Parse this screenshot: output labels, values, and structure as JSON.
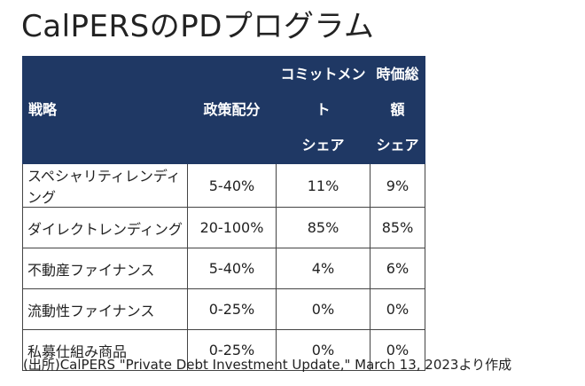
{
  "header": {
    "title": "CalPERSのPDプログラム"
  },
  "table": {
    "columns": [
      [
        "戦略"
      ],
      [
        "政策配分"
      ],
      [
        "コミットメント",
        "シェア"
      ],
      [
        "時価総額",
        "シェア"
      ]
    ],
    "rows": [
      [
        "スペシャリティレンディング",
        "5-40%",
        "11%",
        "9%"
      ],
      [
        "ダイレクトレンディング",
        "20-100%",
        "85%",
        "85%"
      ],
      [
        "不動産ファイナンス",
        "5-40%",
        "4%",
        "6%"
      ],
      [
        "流動性ファイナンス",
        "0-25%",
        "0%",
        "0%"
      ],
      [
        "私募仕組み商品",
        "0-25%",
        "0%",
        "0%"
      ]
    ]
  },
  "footer": {
    "source": "(出所)CalPERS \"Private Debt Investment Update,\" March 13, 2023より作成"
  }
}
